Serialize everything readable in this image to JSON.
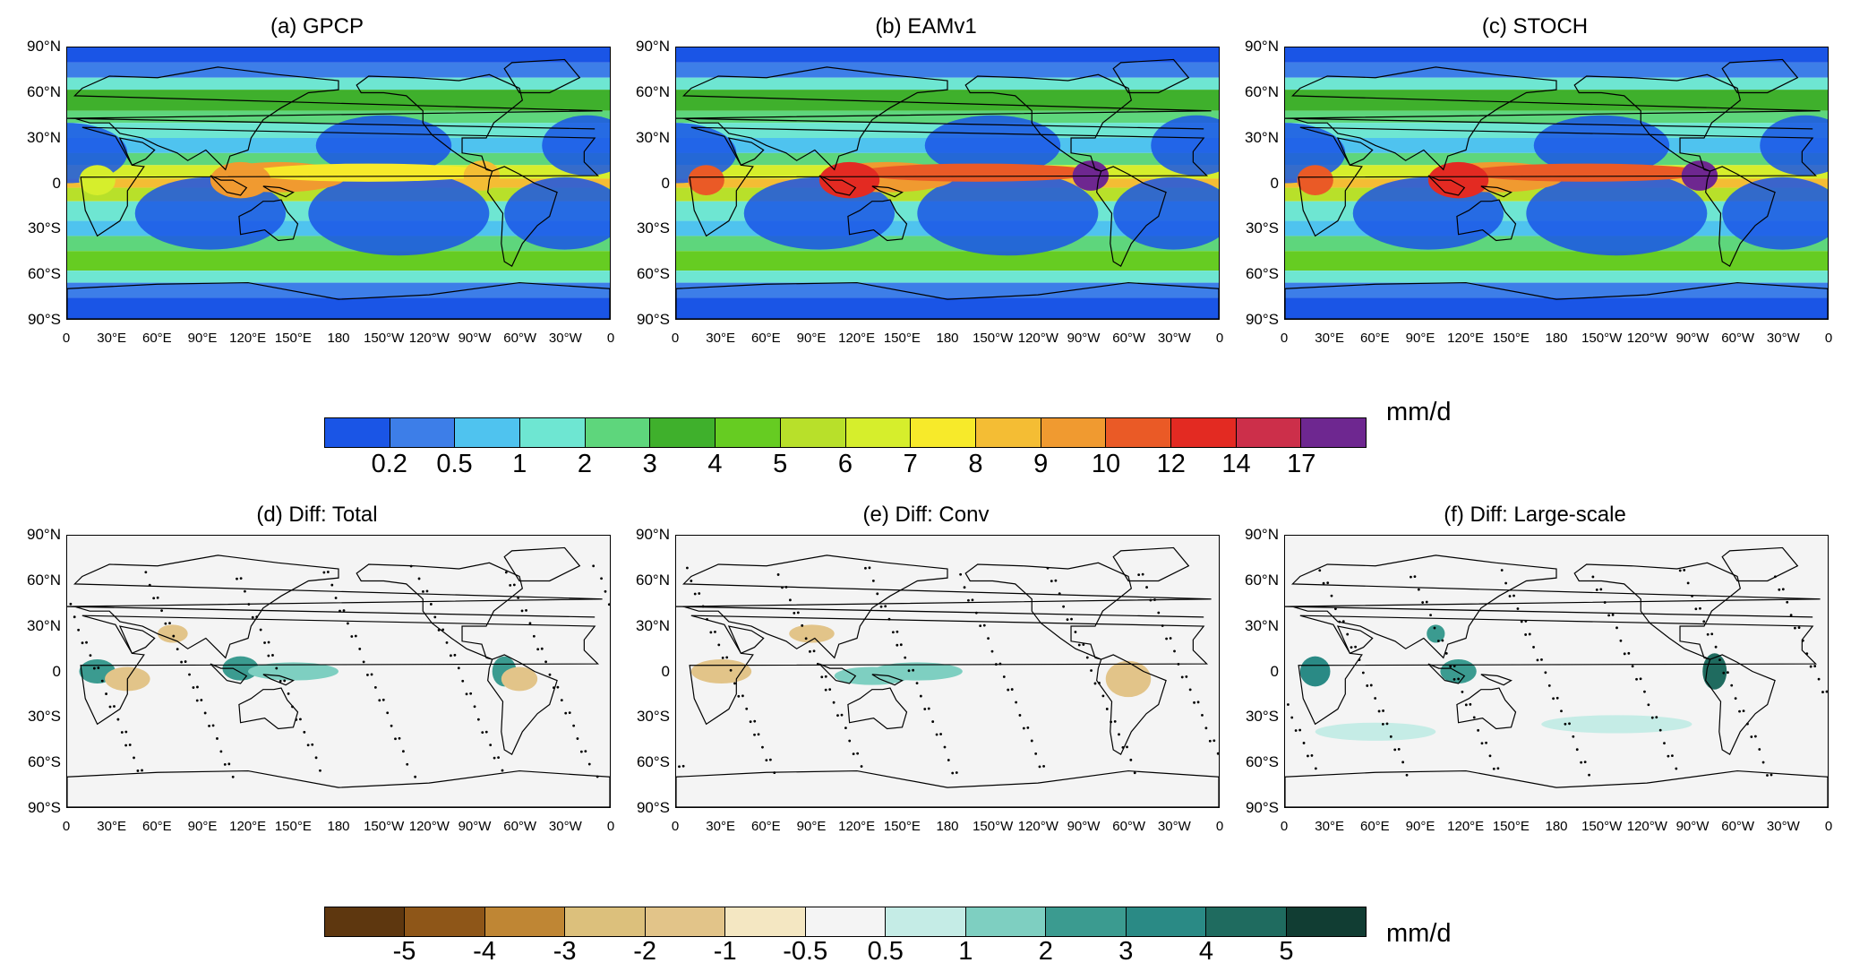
{
  "panels": [
    {
      "title": "(a) GPCP",
      "kind": "precip"
    },
    {
      "title": "(b) EAMv1",
      "kind": "precip"
    },
    {
      "title": "(c) STOCH",
      "kind": "precip"
    },
    {
      "title": "(d) Diff: Total",
      "kind": "diff"
    },
    {
      "title": "(e) Diff: Conv",
      "kind": "diff"
    },
    {
      "title": "(f) Diff: Large-scale",
      "kind": "diff"
    }
  ],
  "lat_labels": [
    "90°N",
    "60°N",
    "30°N",
    "0",
    "30°S",
    "60°S",
    "90°S"
  ],
  "lon_labels": [
    "0",
    "30°E",
    "60°E",
    "90°E",
    "120°E",
    "150°E",
    "180",
    "150°W",
    "120°W",
    "90°W",
    "60°W",
    "30°W",
    "0"
  ],
  "colorbar_top": {
    "labels": [
      "0.2",
      "0.5",
      "1",
      "2",
      "3",
      "4",
      "5",
      "6",
      "7",
      "8",
      "9",
      "10",
      "12",
      "14",
      "17"
    ],
    "colors": [
      "#1a55e6",
      "#3d7ee8",
      "#4fc3ef",
      "#6ee6d2",
      "#5ed67c",
      "#3fb02c",
      "#66cc22",
      "#b8e02a",
      "#d6ee2c",
      "#f7ea2a",
      "#f4bd34",
      "#f09a30",
      "#ea5a26",
      "#e32a22",
      "#cc2f4a",
      "#6e2790"
    ],
    "unit": "mm/d"
  },
  "colorbar_bottom": {
    "labels": [
      "-5",
      "-4",
      "-3",
      "-2",
      "-1",
      "-0.5",
      "0.5",
      "1",
      "2",
      "3",
      "4",
      "5"
    ],
    "colors": [
      "#5e370f",
      "#8e5618",
      "#bf8634",
      "#dcc07c",
      "#e2c489",
      "#f4e7c2",
      "#f4f4f4",
      "#c5ece6",
      "#7ecfc1",
      "#3b9b90",
      "#2a8a85",
      "#1f6b5f",
      "#113d33"
    ],
    "unit": "mm/d"
  }
}
